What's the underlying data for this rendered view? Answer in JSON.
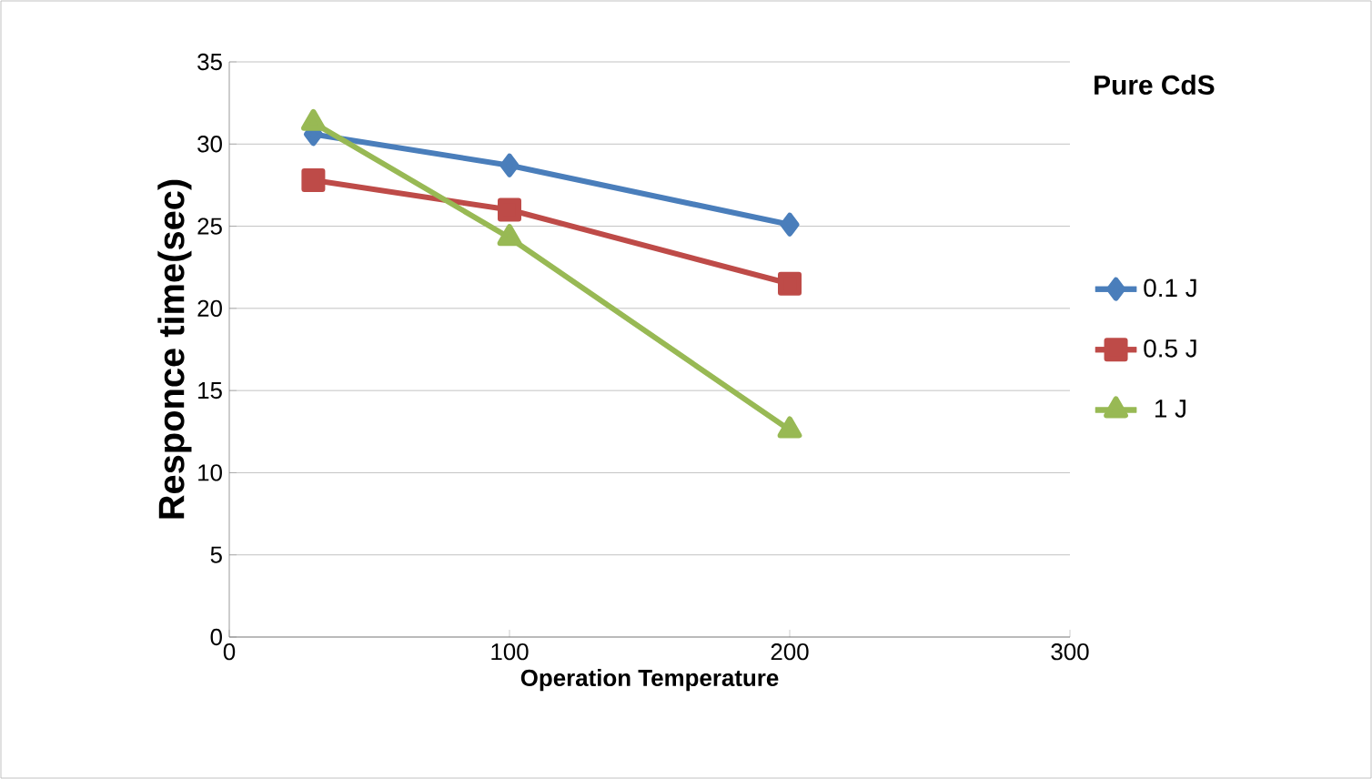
{
  "chart_data": {
    "type": "line",
    "title": "Pure CdS",
    "xlabel": "Operation Temperature",
    "ylabel": "Responce time(sec)",
    "x": [
      30,
      100,
      200
    ],
    "series": [
      {
        "name": "0.1 J",
        "color": "#4a7ebb",
        "marker": "diamond",
        "values": [
          30.6,
          28.7,
          25.1
        ]
      },
      {
        "name": "0.5 J",
        "color": "#be4b48",
        "marker": "square",
        "values": [
          27.8,
          26.0,
          21.5
        ]
      },
      {
        "name": "1 J",
        "color": "#98b954",
        "marker": "triangle",
        "values": [
          31.3,
          24.3,
          12.6
        ]
      }
    ],
    "xlim": [
      0,
      300
    ],
    "xticks": [
      0,
      100,
      200,
      300
    ],
    "ylim": [
      0,
      35
    ],
    "yticks": [
      0,
      5,
      10,
      15,
      20,
      25,
      30,
      35
    ],
    "grid": "y",
    "legend": "right",
    "line_style": "solid"
  }
}
